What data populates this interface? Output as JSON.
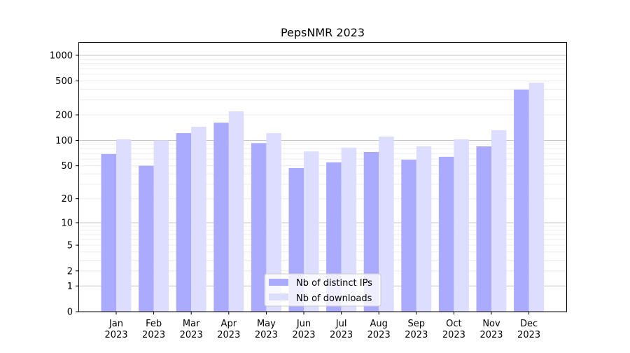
{
  "chart_data": {
    "type": "bar",
    "title": "PepsNMR 2023",
    "xlabel": "",
    "ylabel": "",
    "yscale": "log(1+y)",
    "ylim": [
      0,
      1430
    ],
    "yticks": [
      0,
      1,
      2,
      5,
      10,
      20,
      50,
      100,
      200,
      500,
      1000
    ],
    "ytick_labels": [
      "0",
      "1",
      "2",
      "5",
      "10",
      "20",
      "50",
      "100",
      "200",
      "500",
      "1000"
    ],
    "grid": true,
    "legend_position": "bottom-center",
    "categories": [
      "Jan\n2023",
      "Feb\n2023",
      "Mar\n2023",
      "Apr\n2023",
      "May\n2023",
      "Jun\n2023",
      "Jul\n2023",
      "Aug\n2023",
      "Sep\n2023",
      "Oct\n2023",
      "Nov\n2023",
      "Dec\n2023"
    ],
    "series": [
      {
        "name": "Nb of distinct IPs",
        "color": "#aaaaff",
        "values": [
          69,
          50,
          122,
          162,
          93,
          47,
          55,
          73,
          59,
          64,
          85,
          396
        ]
      },
      {
        "name": "Nb of downloads",
        "color": "#ddddff",
        "values": [
          103,
          100,
          145,
          220,
          122,
          74,
          82,
          111,
          85,
          103,
          132,
          478
        ]
      }
    ]
  }
}
